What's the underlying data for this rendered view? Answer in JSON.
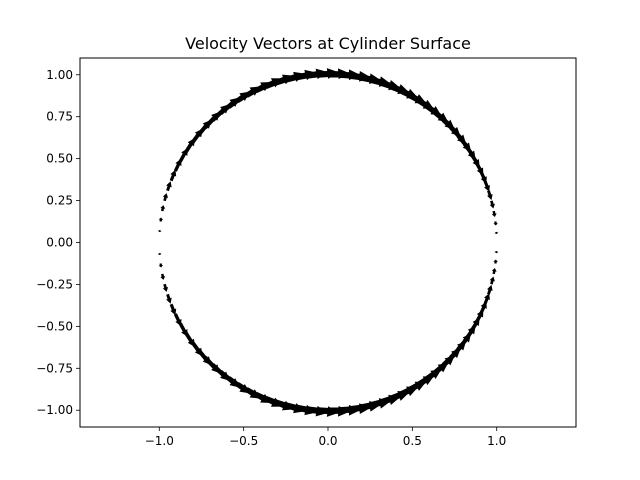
{
  "chart_data": {
    "type": "quiver",
    "title": "Velocity Vectors at Cylinder Surface",
    "xlabel": "",
    "ylabel": "",
    "xlim": [
      -1.47,
      1.47
    ],
    "ylim": [
      -1.1,
      1.1
    ],
    "xticks": [
      -1.0,
      -0.5,
      0.0,
      0.5,
      1.0
    ],
    "xtick_labels": [
      "−1.0",
      "−0.5",
      "0.0",
      "0.5",
      "1.0"
    ],
    "yticks": [
      -1.0,
      -0.75,
      -0.5,
      -0.25,
      0.0,
      0.25,
      0.5,
      0.75,
      1.0
    ],
    "ytick_labels": [
      "−1.00",
      "−0.75",
      "−0.50",
      "−0.25",
      "0.00",
      "0.25",
      "0.50",
      "0.75",
      "1.00"
    ],
    "grid": false,
    "legend": "none",
    "surface": {
      "radius": 1.0,
      "n_points": 100
    },
    "vector_color": "#000000"
  }
}
